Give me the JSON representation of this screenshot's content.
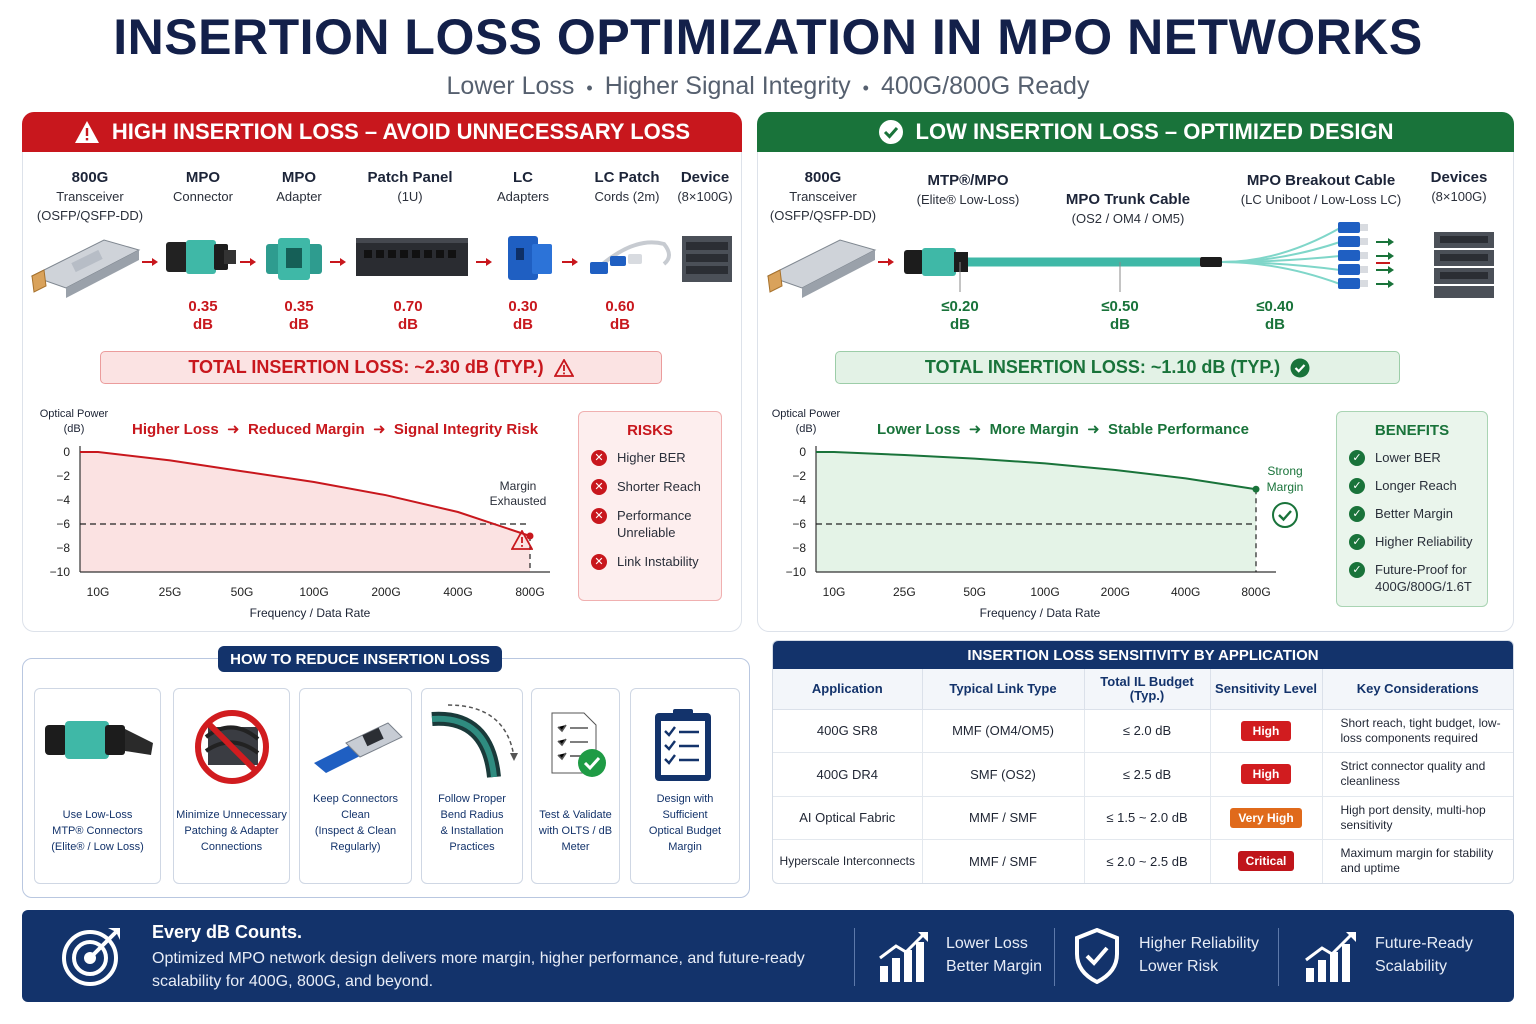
{
  "title": "INSERTION LOSS OPTIMIZATION IN MPO NETWORKS",
  "subtitle": [
    "Lower Loss",
    "Higher Signal Integrity",
    "400G/800G Ready"
  ],
  "colors": {
    "red": "#c8171d",
    "green": "#19733a",
    "navy": "#13336b",
    "teal": "#3fb8a7"
  },
  "high": {
    "header": "HIGH INSERTION LOSS – AVOID UNNECESSARY LOSS",
    "components": [
      {
        "name": "800G",
        "sub": "Transceiver",
        "sub2": "(OSFP/QSFP-DD)"
      },
      {
        "name": "MPO",
        "sub": "Connector",
        "sub2": "",
        "loss": "0.35",
        "unit": "dB"
      },
      {
        "name": "MPO",
        "sub": "Adapter",
        "sub2": "",
        "loss": "0.35",
        "unit": "dB"
      },
      {
        "name": "Patch Panel",
        "sub": "(1U)",
        "sub2": "",
        "loss": "0.70",
        "unit": "dB"
      },
      {
        "name": "LC",
        "sub": "Adapters",
        "sub2": "",
        "loss": "0.30",
        "unit": "dB"
      },
      {
        "name": "LC Patch",
        "sub": "Cords (2m)",
        "sub2": "",
        "loss": "0.60",
        "unit": "dB"
      },
      {
        "name": "Device",
        "sub": "(8×100G)",
        "sub2": ""
      }
    ],
    "total": "TOTAL INSERTION LOSS:  ~2.30 dB  (TYP.)",
    "flow": [
      "Higher Loss",
      "Reduced Margin",
      "Signal Integrity Risk"
    ],
    "risks_title": "RISKS",
    "risks": [
      "Higher BER",
      "Shorter Reach",
      "Performance Unreliable",
      "Link Instability"
    ],
    "annotation": [
      "Margin",
      "Exhausted"
    ]
  },
  "low": {
    "header": "LOW INSERTION LOSS – OPTIMIZED DESIGN",
    "components": [
      {
        "name": "800G",
        "sub": "Transceiver",
        "sub2": "(OSFP/QSFP-DD)"
      },
      {
        "name": "MTP®/MPO",
        "sub": "(Elite® Low-Loss)",
        "loss": "≤0.20",
        "unit": "dB"
      },
      {
        "name": "MPO Trunk Cable",
        "sub": "(OS2 / OM4 / OM5)",
        "loss": "≤0.50",
        "unit": "dB"
      },
      {
        "name": "MPO Breakout Cable",
        "sub": "(LC Uniboot / Low-Loss LC)",
        "loss": "≤0.40",
        "unit": "dB"
      },
      {
        "name": "Devices",
        "sub": "(8×100G)"
      }
    ],
    "total": "TOTAL INSERTION LOSS:  ~1.10 dB  (TYP.)",
    "flow": [
      "Lower Loss",
      "More Margin",
      "Stable Performance"
    ],
    "benefits_title": "BENEFITS",
    "benefits": [
      "Lower BER",
      "Longer Reach",
      "Better Margin",
      "Higher Reliability",
      "Future-Proof for 400G/800G/1.6T"
    ],
    "annotation": [
      "Strong",
      "Margin"
    ]
  },
  "chart_data": [
    {
      "type": "line",
      "ylabel": "Optical Power (dB)",
      "xlabel": "Frequency / Data Rate",
      "categories": [
        "10G",
        "25G",
        "50G",
        "100G",
        "200G",
        "400G",
        "800G"
      ],
      "yticks": [
        "0",
        "−2",
        "−4",
        "−6",
        "−8",
        "−10"
      ],
      "ylim": [
        -10,
        0
      ],
      "threshold": -6,
      "series": [
        {
          "values": [
            0,
            -0.7,
            -1.6,
            -2.5,
            -3.6,
            -5.0,
            -7.0
          ]
        }
      ]
    },
    {
      "type": "line",
      "ylabel": "Optical Power (dB)",
      "xlabel": "Frequency / Data Rate",
      "categories": [
        "10G",
        "25G",
        "50G",
        "100G",
        "200G",
        "400G",
        "800G"
      ],
      "yticks": [
        "0",
        "−2",
        "−4",
        "−6",
        "−8",
        "−10"
      ],
      "ylim": [
        -10,
        0
      ],
      "threshold": -6,
      "series": [
        {
          "values": [
            0,
            -0.25,
            -0.55,
            -0.95,
            -1.5,
            -2.2,
            -3.1
          ]
        }
      ]
    }
  ],
  "reduce": {
    "title": "HOW TO REDUCE INSERTION LOSS",
    "cards": [
      {
        "l1": "Use Low-Loss",
        "l2": "MTP® Connectors",
        "l3": "(Elite® / Low Loss)",
        "icon": "mpo-connector-icon"
      },
      {
        "l1": "Minimize Unnecessary",
        "l2": "Patching & Adapter",
        "l3": "Connections",
        "icon": "no-patching-icon"
      },
      {
        "l1": "Keep Connectors Clean",
        "l2": "(Inspect & Clean Regularly)",
        "l3": "",
        "icon": "clean-connector-icon"
      },
      {
        "l1": "Follow Proper Bend Radius",
        "l2": "& Installation Practices",
        "l3": "",
        "icon": "bend-radius-icon"
      },
      {
        "l1": "Test & Validate",
        "l2": "with OLTS / dB Meter",
        "l3": "",
        "icon": "test-checklist-icon"
      },
      {
        "l1": "Design with Sufficient",
        "l2": "Optical Budget Margin",
        "l3": "",
        "icon": "clipboard-icon"
      }
    ]
  },
  "sensitivity": {
    "title": "INSERTION LOSS SENSITIVITY BY APPLICATION",
    "headers": [
      "Application",
      "Typical Link Type",
      "Total IL Budget (Typ.)",
      "Sensitivity Level",
      "Key Considerations"
    ],
    "rows": [
      {
        "app": "400G SR8",
        "link": "MMF (OM4/OM5)",
        "budget": "≤ 2.0 dB",
        "level": "High",
        "color": "#d11c1f",
        "notes": "Short reach, tight budget, low-loss components required"
      },
      {
        "app": "400G DR4",
        "link": "SMF (OS2)",
        "budget": "≤ 2.5 dB",
        "level": "High",
        "color": "#d11c1f",
        "notes": "Strict connector quality and cleanliness"
      },
      {
        "app": "AI Optical Fabric",
        "link": "MMF / SMF",
        "budget": "≤ 1.5 ~ 2.0 dB",
        "level": "Very High",
        "color": "#e06a1b",
        "notes": "High port density, multi-hop sensitivity"
      },
      {
        "app": "Hyperscale Interconnects",
        "link": "MMF / SMF",
        "budget": "≤ 2.0 ~ 2.5 dB",
        "level": "Critical",
        "color": "#c0151b",
        "notes": "Maximum margin for stability and uptime"
      }
    ]
  },
  "footer": {
    "headline": "Every dB Counts.",
    "text": "Optimized MPO network design delivers more margin, higher performance, and future-ready scalability for 400G, 800G, and beyond.",
    "items": [
      {
        "l1": "Lower Loss",
        "l2": "Better Margin"
      },
      {
        "l1": "Higher Reliability",
        "l2": "Lower Risk"
      },
      {
        "l1": "Future-Ready",
        "l2": "Scalability"
      }
    ]
  }
}
